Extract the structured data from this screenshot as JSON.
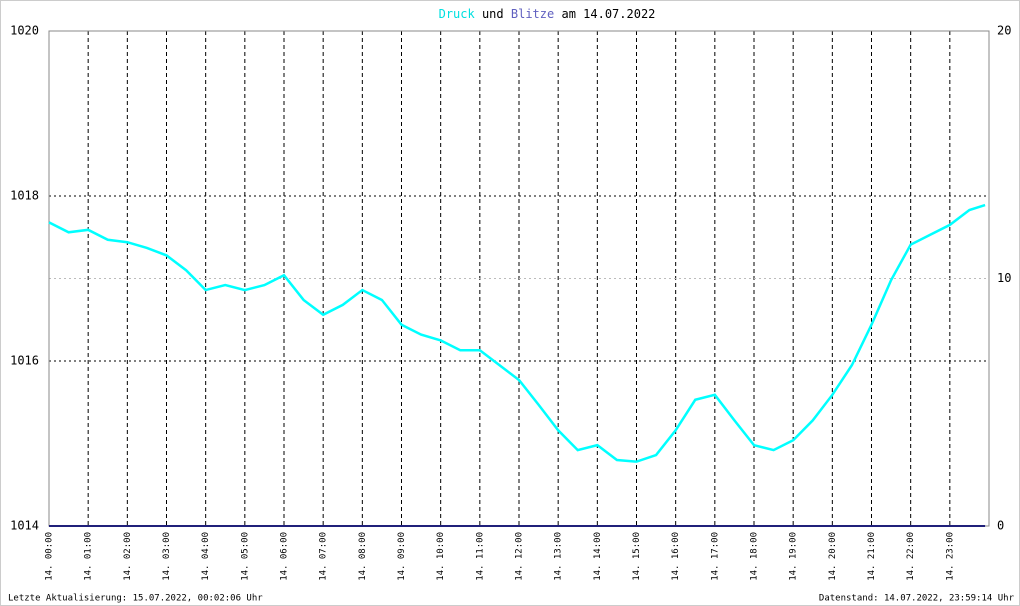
{
  "chart_data": {
    "type": "line",
    "title_connector": "und",
    "title_date": "am 14.07.2022",
    "footer_left": "Letzte Aktualisierung: 15.07.2022, 00:02:06 Uhr",
    "footer_right": "Datenstand: 14.07.2022, 23:59:14 Uhr",
    "x": [
      0,
      0.5,
      1,
      1.5,
      2,
      2.5,
      3,
      3.5,
      4,
      4.5,
      5,
      5.5,
      6,
      6.5,
      7,
      7.5,
      8,
      8.5,
      9,
      9.5,
      10,
      10.5,
      11,
      11.5,
      12,
      12.5,
      13,
      13.5,
      14,
      14.5,
      15,
      15.5,
      16,
      16.5,
      17,
      17.5,
      18,
      18.5,
      19,
      19.5,
      20,
      20.5,
      21,
      21.5,
      22,
      22.5,
      23,
      23.5,
      23.9
    ],
    "series": [
      {
        "name": "Druck",
        "color": "#00ffff",
        "values": [
          1017.68,
          1017.56,
          1017.59,
          1017.47,
          1017.44,
          1017.37,
          1017.28,
          1017.1,
          1016.86,
          1016.92,
          1016.86,
          1016.92,
          1017.04,
          1016.74,
          1016.56,
          1016.68,
          1016.86,
          1016.74,
          1016.44,
          1016.32,
          1016.25,
          1016.13,
          1016.13,
          1015.95,
          1015.77,
          1015.47,
          1015.16,
          1014.92,
          1014.98,
          1014.8,
          1014.78,
          1014.86,
          1015.16,
          1015.53,
          1015.59,
          1015.28,
          1014.98,
          1014.92,
          1015.04,
          1015.28,
          1015.59,
          1015.95,
          1016.44,
          1016.98,
          1017.41,
          1017.53,
          1017.65,
          1017.83,
          1017.89
        ]
      },
      {
        "name": "Blitze",
        "color": "#20207a",
        "axis": "y2",
        "values": [
          0,
          0,
          0,
          0,
          0,
          0,
          0,
          0,
          0,
          0,
          0,
          0,
          0,
          0,
          0,
          0,
          0,
          0,
          0,
          0,
          0,
          0,
          0,
          0,
          0,
          0,
          0,
          0,
          0,
          0,
          0,
          0,
          0,
          0,
          0,
          0,
          0,
          0,
          0,
          0,
          0,
          0,
          0,
          0,
          0,
          0,
          0,
          0,
          0
        ]
      }
    ],
    "xlim": [
      0,
      24
    ],
    "xticks": [
      {
        "value": 0,
        "label": "14. 00:00"
      },
      {
        "value": 1,
        "label": "14. 01:00"
      },
      {
        "value": 2,
        "label": "14. 02:00"
      },
      {
        "value": 3,
        "label": "14. 03:00"
      },
      {
        "value": 4,
        "label": "14. 04:00"
      },
      {
        "value": 5,
        "label": "14. 05:00"
      },
      {
        "value": 6,
        "label": "14. 06:00"
      },
      {
        "value": 7,
        "label": "14. 07:00"
      },
      {
        "value": 8,
        "label": "14. 08:00"
      },
      {
        "value": 9,
        "label": "14. 09:00"
      },
      {
        "value": 10,
        "label": "14. 10:00"
      },
      {
        "value": 11,
        "label": "14. 11:00"
      },
      {
        "value": 12,
        "label": "14. 12:00"
      },
      {
        "value": 13,
        "label": "14. 13:00"
      },
      {
        "value": 14,
        "label": "14. 14:00"
      },
      {
        "value": 15,
        "label": "14. 15:00"
      },
      {
        "value": 16,
        "label": "14. 16:00"
      },
      {
        "value": 17,
        "label": "14. 17:00"
      },
      {
        "value": 18,
        "label": "14. 18:00"
      },
      {
        "value": 19,
        "label": "14. 19:00"
      },
      {
        "value": 20,
        "label": "14. 20:00"
      },
      {
        "value": 21,
        "label": "14. 21:00"
      },
      {
        "value": 22,
        "label": "14. 22:00"
      },
      {
        "value": 23,
        "label": "14. 23:00"
      }
    ],
    "ylim": [
      1014,
      1020
    ],
    "yticks": [
      1014,
      1016,
      1018,
      1020
    ],
    "y2lim": [
      0,
      20
    ],
    "y2ticks": [
      0,
      10,
      20
    ],
    "grid": true
  }
}
